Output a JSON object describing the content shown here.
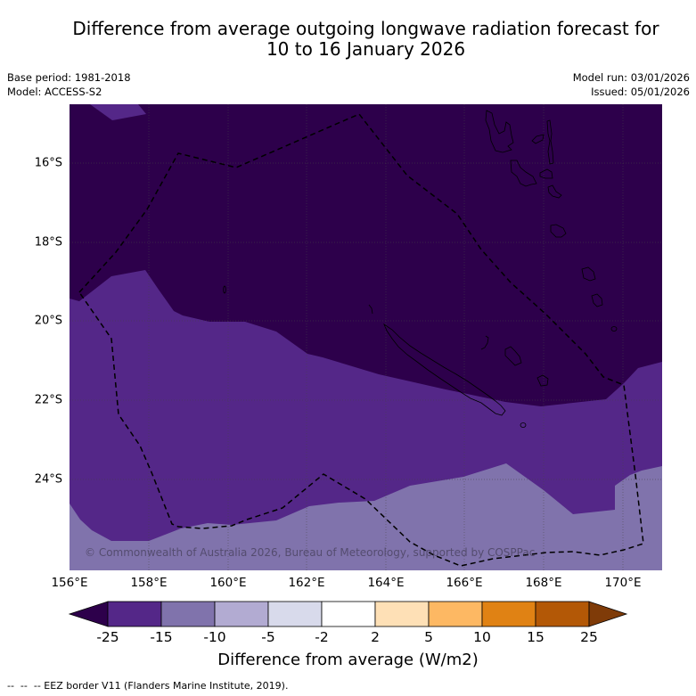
{
  "header": {
    "title_line1": "Difference from average outgoing longwave radiation forecast for",
    "title_line2": "10 to 16 January 2026",
    "base_period": "Base period: 1981-2018",
    "model": "Model: ACCESS-S2",
    "model_run": "Model run: 03/01/2026",
    "issued": "Issued: 05/01/2026"
  },
  "map": {
    "extent_degrees": {
      "lon_min": 156,
      "lon_max": 171,
      "lat_min": -25.8,
      "lat_max": -14.5
    },
    "lat_labels": [
      "16°S",
      "18°S",
      "20°S",
      "22°S",
      "24°S"
    ],
    "lon_labels": [
      "156°E",
      "158°E",
      "160°E",
      "162°E",
      "164°E",
      "166°E",
      "168°E",
      "170°E"
    ],
    "copyright": "© Commonwealth of Australia 2026, Bureau of Meteorology, supported by COSPPac",
    "region_fills": {
      "below_-25": "#2d004b",
      "-25_to_-15": "#542788",
      "-15_to_-10": "#8073ac"
    },
    "eez_line_color": "#000000",
    "coastline_color": "#000000"
  },
  "colorbar": {
    "levels": [
      -25,
      -15,
      -10,
      -5,
      -2,
      2,
      5,
      10,
      15,
      25
    ],
    "ticks": [
      "-25",
      "-15",
      "-10",
      "-5",
      "-2",
      "2",
      "5",
      "10",
      "15",
      "25"
    ],
    "colors": [
      "#542788",
      "#8073ac",
      "#b2abd2",
      "#d8daeb",
      "#ffffff",
      "#fee0b6",
      "#fdb863",
      "#e08214",
      "#b35806"
    ],
    "under_color": "#2d004b",
    "over_color": "#7f3b08",
    "label": "Difference from average (W/m2)"
  },
  "footer": {
    "legend": "--  --  -- EEZ border V11 (Flanders Marine Institute, 2019)."
  }
}
